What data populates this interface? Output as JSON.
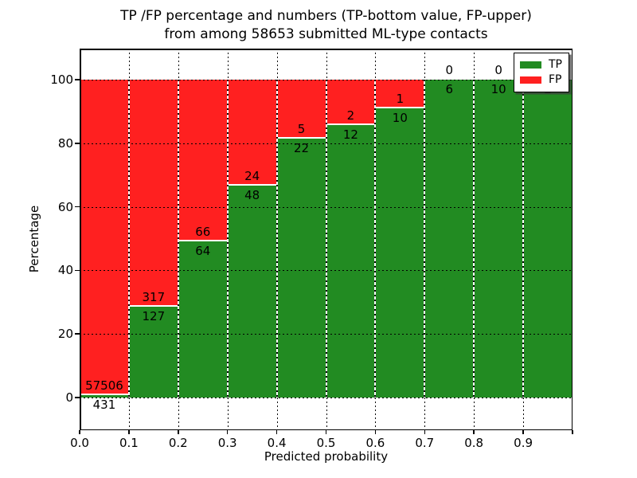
{
  "chart_data": {
    "type": "bar",
    "stacked": true,
    "title_lines": {
      "line1": "TP /FP percentage and numbers (TP-bottom value, FP-upper)",
      "line2": "from among 58653 submitted ML-type contacts"
    },
    "total_contacts": 58653,
    "xlabel": "Predicted probability",
    "ylabel": "Percentage",
    "xlim": [
      0.0,
      1.0
    ],
    "ylim": [
      -10.3,
      109.8
    ],
    "grid": true,
    "x_tick_labels": [
      "0.0",
      "0.1",
      "0.2",
      "0.3",
      "0.4",
      "0.5",
      "0.6",
      "0.7",
      "0.8",
      "0.9"
    ],
    "y_ticks": [
      0,
      20,
      40,
      60,
      80,
      100
    ],
    "y_tick_labels": [
      "0",
      "20",
      "40",
      "60",
      "80",
      "100"
    ],
    "colors": {
      "tp": "#228B22",
      "fp": "#FF2020"
    },
    "legend": {
      "position": "upper right",
      "entries": [
        {
          "label": "TP",
          "color": "#228B22"
        },
        {
          "label": "FP",
          "color": "#FF2020"
        }
      ]
    },
    "series": [
      {
        "name": "TP",
        "values": [
          431,
          127,
          64,
          48,
          22,
          12,
          10,
          6,
          10,
          2
        ]
      },
      {
        "name": "FP",
        "values": [
          57506,
          317,
          66,
          24,
          5,
          2,
          1,
          0,
          0,
          0
        ]
      }
    ],
    "bins": [
      {
        "x0": 0.0,
        "x1": 0.1,
        "tp": 431,
        "fp": 57506,
        "tp_pct": 0.74,
        "tp_label": "431",
        "fp_label": "57506"
      },
      {
        "x0": 0.1,
        "x1": 0.2,
        "tp": 127,
        "fp": 317,
        "tp_pct": 28.6,
        "tp_label": "127",
        "fp_label": "317"
      },
      {
        "x0": 0.2,
        "x1": 0.3,
        "tp": 64,
        "fp": 66,
        "tp_pct": 49.2,
        "tp_label": "64",
        "fp_label": "66"
      },
      {
        "x0": 0.3,
        "x1": 0.4,
        "tp": 48,
        "fp": 24,
        "tp_pct": 66.7,
        "tp_label": "48",
        "fp_label": "24"
      },
      {
        "x0": 0.4,
        "x1": 0.5,
        "tp": 22,
        "fp": 5,
        "tp_pct": 81.5,
        "tp_label": "22",
        "fp_label": "5"
      },
      {
        "x0": 0.5,
        "x1": 0.6,
        "tp": 12,
        "fp": 2,
        "tp_pct": 85.7,
        "tp_label": "12",
        "fp_label": "2"
      },
      {
        "x0": 0.6,
        "x1": 0.7,
        "tp": 10,
        "fp": 1,
        "tp_pct": 90.9,
        "tp_label": "10",
        "fp_label": "1"
      },
      {
        "x0": 0.7,
        "x1": 0.8,
        "tp": 6,
        "fp": 0,
        "tp_pct": 100,
        "tp_label": "6",
        "fp_label": "0"
      },
      {
        "x0": 0.8,
        "x1": 0.9,
        "tp": 10,
        "fp": 0,
        "tp_pct": 100,
        "tp_label": "10",
        "fp_label": "0"
      },
      {
        "x0": 0.9,
        "x1": 1.0,
        "tp": 2,
        "fp": 0,
        "tp_pct": 100,
        "tp_label": "2",
        "fp_label": ""
      }
    ]
  }
}
